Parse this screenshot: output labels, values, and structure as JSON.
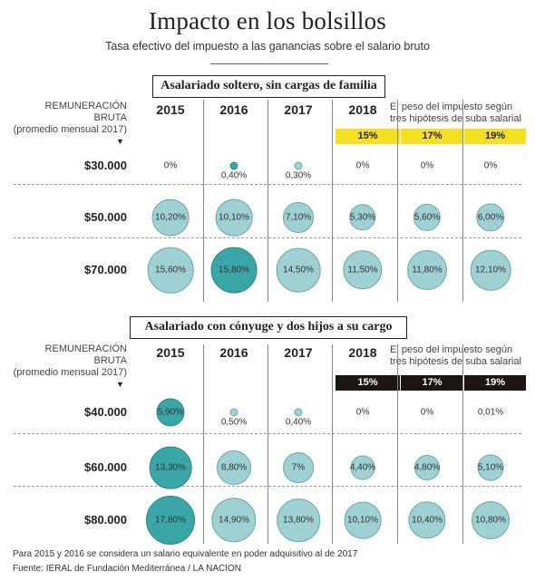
{
  "header": {
    "title": "Impacto en los bolsillos",
    "subtitle": "Tasa efectivo del impuesto a las ganancias sobre el salario bruto"
  },
  "colors": {
    "bubble_light": "#9fd0d3",
    "bubble_dark": "#3aa6a8",
    "hyp_yellow": "#f4df21",
    "hyp_dark": "#1d1512"
  },
  "footer": {
    "note": "Para 2015 y 2016 se considera un salario equivalente en poder adquisitivo al de 2017",
    "source": "Fuente: IERAL de Fundación Mediterránea / LA NACION"
  },
  "chart_data": [
    {
      "type": "table",
      "section_title": "Asalariado soltero, sin cargas de familia",
      "row_header": {
        "line1": "REMUNERACIÓN",
        "line2": "BRUTA",
        "line3": "(promedio mensual 2017)"
      },
      "columns": [
        "2015",
        "2016",
        "2017",
        "2018",
        "",
        ""
      ],
      "note": {
        "line1": "El peso del impuesto según",
        "line2": "tres hipótesis de suba salarial"
      },
      "hypotheses": [
        "15%",
        "17%",
        "19%"
      ],
      "rows": [
        {
          "salary": "$30.000",
          "labels": [
            "0%",
            "0,40%",
            "0,30%",
            "0%",
            "0%",
            "0%"
          ],
          "values": [
            0,
            0.4,
            0.3,
            0,
            0,
            0
          ]
        },
        {
          "salary": "$50.000",
          "labels": [
            "10,20%",
            "10,10%",
            "7,10%",
            "5,30%",
            "5,60%",
            "6,00%"
          ],
          "values": [
            10.2,
            10.1,
            7.1,
            5.3,
            5.6,
            6.0
          ]
        },
        {
          "salary": "$70.000",
          "labels": [
            "15,60%",
            "15,80%",
            "14,50%",
            "11,50%",
            "11,80%",
            "12,10%"
          ],
          "values": [
            15.6,
            15.8,
            14.5,
            11.5,
            11.8,
            12.1
          ]
        }
      ],
      "highlight": [
        [
          0,
          1
        ],
        [
          2,
          1
        ]
      ]
    },
    {
      "type": "table",
      "section_title": "Asalariado con cónyuge y dos hijos a su cargo",
      "row_header": {
        "line1": "REMUNERACIÓN",
        "line2": "BRUTA",
        "line3": "(promedio mensual 2017)"
      },
      "columns": [
        "2015",
        "2016",
        "2017",
        "2018",
        "",
        ""
      ],
      "note": {
        "line1": "El peso del impuesto según",
        "line2": "tres hipótesis de suba salarial"
      },
      "hypotheses": [
        "15%",
        "17%",
        "19%"
      ],
      "rows": [
        {
          "salary": "$40.000",
          "labels": [
            "5,90%",
            "0,50%",
            "0,40%",
            "0%",
            "0%",
            "0,01%"
          ],
          "values": [
            5.9,
            0.5,
            0.4,
            0,
            0,
            0.01
          ]
        },
        {
          "salary": "$60.000",
          "labels": [
            "13,30%",
            "8,80%",
            "7%",
            "4,40%",
            "4,80%",
            "5,10%"
          ],
          "values": [
            13.3,
            8.8,
            7.0,
            4.4,
            4.8,
            5.1
          ]
        },
        {
          "salary": "$80.000",
          "labels": [
            "17,80%",
            "14,90%",
            "13,80%",
            "10,10%",
            "10,40%",
            "10,80%"
          ],
          "values": [
            17.8,
            14.9,
            13.8,
            10.1,
            10.4,
            10.8
          ]
        }
      ],
      "highlight": [
        [
          0,
          0
        ],
        [
          1,
          0
        ],
        [
          2,
          0
        ]
      ]
    }
  ]
}
